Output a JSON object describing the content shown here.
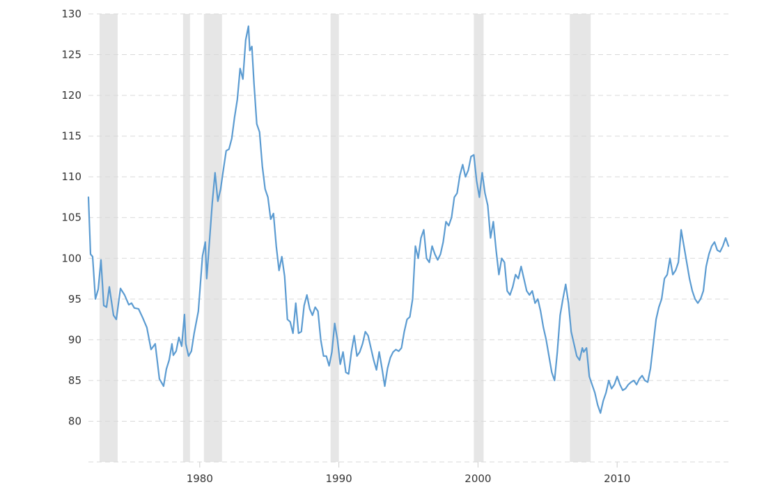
{
  "chart_data": {
    "type": "line",
    "title": "",
    "xlabel": "",
    "ylabel": "",
    "xlim": [
      1972.0,
      2018.1
    ],
    "ylim": [
      75,
      130
    ],
    "yticks": [
      80,
      85,
      90,
      95,
      100,
      105,
      110,
      115,
      120,
      125,
      130
    ],
    "xticks": [
      1980,
      1990,
      2000,
      2010
    ],
    "grid": "horizontal dashed",
    "legend": "none",
    "colors": {
      "line": "#5b9bd1",
      "recession": "#e6e6e6",
      "grid": "#d9d9d9",
      "text": "#333333"
    },
    "recessions": [
      [
        1972.8,
        1974.1
      ],
      [
        1978.8,
        1979.3
      ],
      [
        1980.3,
        1981.6
      ],
      [
        1989.4,
        1990.0
      ],
      [
        1999.7,
        2000.4
      ],
      [
        2006.6,
        2008.1
      ]
    ],
    "series": [
      {
        "x": [
          1972.0,
          1972.15,
          1972.3,
          1972.5,
          1972.7,
          1972.9,
          1973.1,
          1973.3,
          1973.5,
          1973.8,
          1974.0,
          1974.3,
          1974.6,
          1974.9,
          1975.1,
          1975.3,
          1975.6,
          1975.9,
          1976.2,
          1976.5,
          1976.8,
          1977.1,
          1977.4,
          1977.6,
          1977.8,
          1978.0,
          1978.1,
          1978.3,
          1978.5,
          1978.7,
          1978.9,
          1979.0,
          1979.2,
          1979.4,
          1979.6,
          1979.9,
          1980.2,
          1980.4,
          1980.5,
          1980.7,
          1980.9,
          1981.1,
          1981.3,
          1981.5,
          1981.7,
          1981.9,
          1982.1,
          1982.3,
          1982.5,
          1982.7,
          1982.9,
          1983.1,
          1983.3,
          1983.5,
          1983.6,
          1983.75,
          1983.9,
          1984.1,
          1984.3,
          1984.5,
          1984.7,
          1984.9,
          1985.1,
          1985.3,
          1985.5,
          1985.7,
          1985.9,
          1986.1,
          1986.3,
          1986.5,
          1986.7,
          1986.9,
          1987.1,
          1987.3,
          1987.5,
          1987.7,
          1987.9,
          1988.1,
          1988.3,
          1988.5,
          1988.7,
          1988.9,
          1989.1,
          1989.3,
          1989.5,
          1989.7,
          1989.9,
          1990.1,
          1990.3,
          1990.5,
          1990.7,
          1990.9,
          1991.1,
          1991.3,
          1991.5,
          1991.7,
          1991.9,
          1992.1,
          1992.3,
          1992.5,
          1992.7,
          1992.9,
          1993.1,
          1993.3,
          1993.5,
          1993.7,
          1993.9,
          1994.1,
          1994.3,
          1994.5,
          1994.7,
          1994.9,
          1995.1,
          1995.3,
          1995.5,
          1995.7,
          1995.9,
          1996.1,
          1996.3,
          1996.5,
          1996.7,
          1996.9,
          1997.1,
          1997.3,
          1997.5,
          1997.7,
          1997.9,
          1998.1,
          1998.3,
          1998.5,
          1998.7,
          1998.9,
          1999.1,
          1999.3,
          1999.5,
          1999.7,
          1999.9,
          2000.1,
          2000.3,
          2000.5,
          2000.7,
          2000.9,
          2001.1,
          2001.3,
          2001.5,
          2001.7,
          2001.9,
          2002.1,
          2002.3,
          2002.5,
          2002.7,
          2002.9,
          2003.1,
          2003.3,
          2003.5,
          2003.7,
          2003.9,
          2004.1,
          2004.3,
          2004.5,
          2004.7,
          2004.9,
          2005.1,
          2005.3,
          2005.5,
          2005.7,
          2005.9,
          2006.1,
          2006.3,
          2006.5,
          2006.7,
          2006.9,
          2007.1,
          2007.3,
          2007.5,
          2007.6,
          2007.8,
          2008.0,
          2008.2,
          2008.4,
          2008.6,
          2008.8,
          2009.0,
          2009.2,
          2009.4,
          2009.6,
          2009.8,
          2010.0,
          2010.2,
          2010.4,
          2010.6,
          2010.8,
          2011.0,
          2011.2,
          2011.4,
          2011.6,
          2011.8,
          2012.0,
          2012.2,
          2012.4,
          2012.6,
          2012.8,
          2013.0,
          2013.2,
          2013.4,
          2013.6,
          2013.8,
          2014.0,
          2014.2,
          2014.4,
          2014.6,
          2014.8,
          2015.0,
          2015.2,
          2015.4,
          2015.6,
          2015.8,
          2016.0,
          2016.2,
          2016.4,
          2016.6,
          2016.8,
          2017.0,
          2017.2,
          2017.4,
          2017.6,
          2017.8,
          2018.0
        ],
        "values": [
          107.5,
          100.5,
          100.2,
          95.0,
          96.2,
          99.8,
          94.2,
          94.0,
          96.5,
          93.0,
          92.5,
          96.3,
          95.5,
          94.3,
          94.5,
          93.9,
          93.8,
          92.7,
          91.5,
          88.8,
          89.5,
          85.2,
          84.3,
          86.4,
          87.5,
          89.5,
          88.1,
          88.6,
          90.3,
          89.2,
          93.1,
          89.5,
          88.0,
          88.6,
          90.8,
          93.5,
          100.3,
          102.0,
          97.5,
          102.1,
          106.8,
          110.5,
          107.0,
          108.5,
          110.9,
          113.2,
          113.4,
          114.7,
          117.3,
          119.5,
          123.3,
          122.0,
          126.8,
          128.5,
          125.5,
          126.0,
          121.5,
          116.5,
          115.5,
          111.3,
          108.5,
          107.5,
          104.8,
          105.5,
          101.5,
          98.5,
          100.2,
          97.8,
          92.5,
          92.2,
          90.8,
          94.5,
          90.8,
          91.0,
          94.2,
          95.5,
          93.8,
          93.0,
          94.0,
          93.5,
          90.0,
          88.0,
          88.0,
          86.8,
          88.5,
          92.0,
          90.0,
          87.0,
          88.5,
          86.0,
          85.8,
          88.5,
          90.5,
          88.0,
          88.5,
          89.5,
          91.0,
          90.5,
          89.0,
          87.5,
          86.3,
          88.5,
          86.5,
          84.3,
          86.5,
          87.8,
          88.5,
          88.8,
          88.6,
          89.0,
          91.0,
          92.5,
          92.8,
          95.0,
          101.5,
          100.0,
          102.5,
          103.5,
          100.0,
          99.5,
          101.5,
          100.5,
          99.8,
          100.5,
          102.0,
          104.5,
          104.0,
          105.0,
          107.5,
          108.0,
          110.2,
          111.5,
          110.0,
          110.8,
          112.5,
          112.7,
          109.5,
          107.5,
          110.5,
          108.0,
          106.5,
          102.5,
          104.5,
          101.0,
          98.0,
          100.0,
          99.5,
          96.0,
          95.5,
          96.5,
          98.0,
          97.5,
          99.0,
          97.5,
          96.0,
          95.5,
          96.0,
          94.5,
          95.0,
          93.5,
          91.5,
          90.0,
          88.0,
          86.0,
          85.0,
          88.5,
          93.0,
          95.0,
          96.8,
          94.5,
          91.0,
          89.5,
          88.0,
          87.5,
          89.0,
          88.5,
          89.0,
          85.5,
          84.5,
          83.5,
          82.0,
          81.0,
          82.5,
          83.5,
          85.0,
          84.0,
          84.5,
          85.5,
          84.5,
          83.8,
          84.0,
          84.5,
          84.8,
          85.0,
          84.5,
          85.2,
          85.6,
          85.0,
          84.8,
          86.5,
          89.5,
          92.5,
          94.0,
          95.0,
          97.5,
          98.0,
          100.0,
          98.0,
          98.5,
          99.5,
          103.5,
          101.5,
          99.5,
          97.5,
          96.0,
          95.0,
          94.5,
          95.0,
          96.0,
          99.0,
          100.5,
          101.5,
          102.0,
          101.0,
          100.8,
          101.5,
          102.5,
          101.5
        ]
      }
    ]
  }
}
